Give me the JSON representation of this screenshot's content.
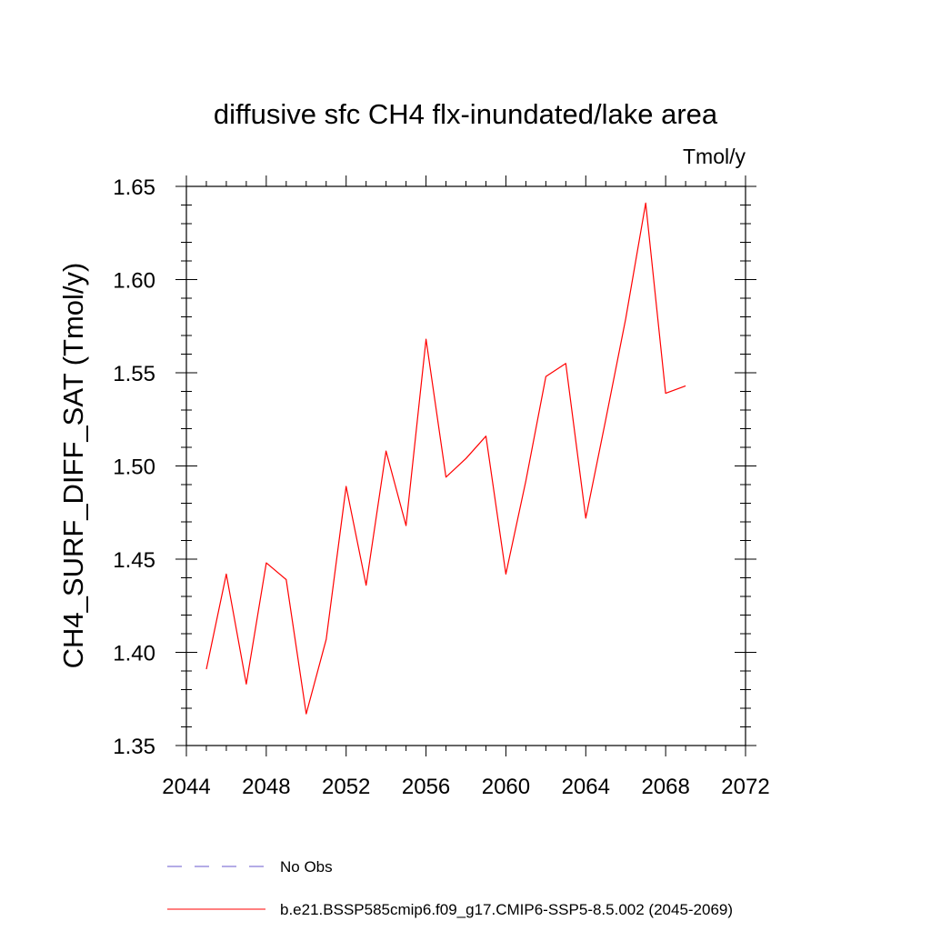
{
  "chart_data": {
    "type": "line",
    "title": "diffusive sfc CH4 flx-inundated/lake area",
    "units_label": "Tmol/y",
    "ylabel": "CH4_SURF_DIFF_SAT  (Tmol/y)",
    "xlabel": "",
    "xlim": [
      2044,
      2072
    ],
    "ylim": [
      1.35,
      1.65
    ],
    "xticks": [
      2044,
      2048,
      2052,
      2056,
      2060,
      2064,
      2068,
      2072
    ],
    "yticks": [
      "1.35",
      "1.40",
      "1.45",
      "1.50",
      "1.55",
      "1.60",
      "1.65"
    ],
    "grid": false,
    "legend_position": "bottom",
    "series": [
      {
        "name": "b.e21.BSSP585cmip6.f09_g17.CMIP6-SSP5-8.5.002 (2045-2069)",
        "color": "#ff0000",
        "style": "solid",
        "x": [
          2045,
          2046,
          2047,
          2048,
          2049,
          2050,
          2051,
          2052,
          2053,
          2054,
          2055,
          2056,
          2057,
          2058,
          2059,
          2060,
          2061,
          2062,
          2063,
          2064,
          2065,
          2066,
          2067,
          2068,
          2069
        ],
        "y": [
          1.391,
          1.442,
          1.383,
          1.448,
          1.439,
          1.367,
          1.407,
          1.489,
          1.436,
          1.508,
          1.468,
          1.568,
          1.494,
          1.504,
          1.516,
          1.442,
          1.492,
          1.548,
          1.555,
          1.472,
          1.525,
          1.579,
          1.641,
          1.539,
          1.543
        ]
      }
    ],
    "legend": [
      {
        "label": "No Obs",
        "color": "#6a5acd",
        "style": "dashed"
      },
      {
        "label": "b.e21.BSSP585cmip6.f09_g17.CMIP6-SSP5-8.5.002 (2045-2069)",
        "color": "#ff0000",
        "style": "solid"
      }
    ]
  }
}
